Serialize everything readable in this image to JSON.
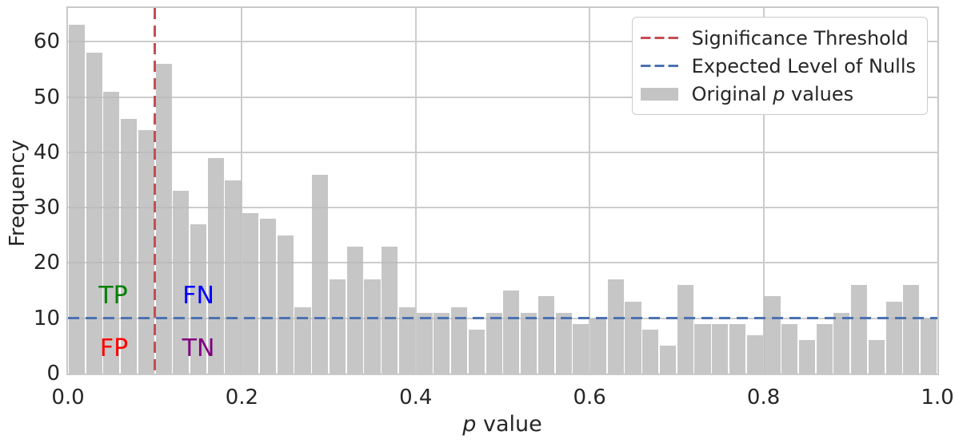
{
  "chart_data": {
    "type": "bar",
    "subtype": "histogram",
    "title": "",
    "ylabel": "Frequency",
    "xlabel": {
      "italic": "p",
      "rest": " value"
    },
    "bin_start": 0.0,
    "bin_width": 0.02,
    "values": [
      63,
      58,
      51,
      46,
      44,
      56,
      33,
      27,
      39,
      35,
      29,
      28,
      25,
      12,
      36,
      17,
      23,
      17,
      23,
      12,
      11,
      11,
      12,
      8,
      11,
      15,
      11,
      14,
      11,
      9,
      10,
      17,
      13,
      8,
      5,
      16,
      9,
      9,
      9,
      7,
      14,
      9,
      6,
      9,
      11,
      16,
      6,
      13,
      16,
      10
    ],
    "total_count": 1000,
    "xlim": [
      0.0,
      1.0
    ],
    "ylim": [
      0,
      66.1
    ],
    "xticks": [
      0.0,
      0.2,
      0.4,
      0.6,
      0.8,
      1.0
    ],
    "xtick_labels": [
      "0.0",
      "0.2",
      "0.4",
      "0.6",
      "0.8",
      "1.0"
    ],
    "yticks": [
      0,
      10,
      20,
      30,
      40,
      50,
      60
    ],
    "ytick_labels": [
      "0",
      "10",
      "20",
      "30",
      "40",
      "50",
      "60"
    ],
    "grid": true,
    "bar_color": "#c4c4c4",
    "vline": {
      "x": 0.1,
      "color": "#c44e52",
      "style": "dashed"
    },
    "hline": {
      "y": 10,
      "color": "#4c72b0",
      "style": "dashed"
    },
    "legend_position": "upper right",
    "annotations": [
      {
        "text": "TP",
        "color": "#008000",
        "x": 0.052,
        "y": 14.0
      },
      {
        "text": "FN",
        "color": "#0000ff",
        "x": 0.15,
        "y": 14.0
      },
      {
        "text": "FP",
        "color": "#ff0000",
        "x": 0.053,
        "y": 4.5
      },
      {
        "text": "TN",
        "color": "#800080",
        "x": 0.15,
        "y": 4.5
      }
    ]
  },
  "legend": {
    "items": [
      {
        "label": "Significance Threshold",
        "color": "#c44e52",
        "kind": "dashed-line"
      },
      {
        "label": "Expected Level of Nulls",
        "color": "#4c72b0",
        "kind": "dashed-line"
      },
      {
        "pre": "Original ",
        "italic": "p",
        "post": " values",
        "color": "#c4c4c4",
        "kind": "patch"
      }
    ]
  }
}
